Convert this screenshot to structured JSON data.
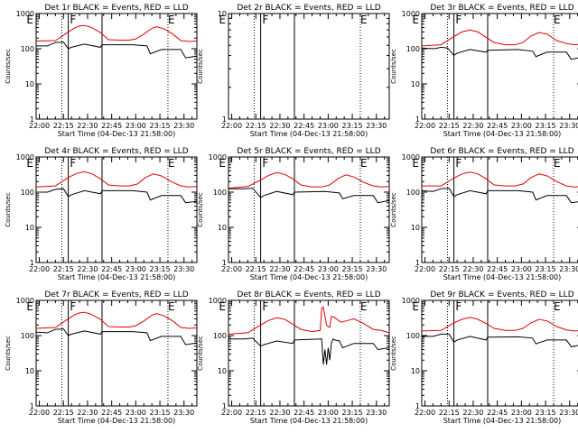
{
  "figure": {
    "xaxis_title": "Start Time (04-Dec-13 21:58:00)",
    "yaxis_title": "Counts/sec",
    "x_tick_labels": [
      "22:00",
      "22:15",
      "22:30",
      "22:45",
      "23:00",
      "23:15",
      "23:30"
    ],
    "y_tick_labels": [
      "1",
      "10",
      "100",
      "1000"
    ],
    "marker_labels": [
      {
        "text": "E",
        "x_min": -6
      },
      {
        "text": "F",
        "x_min": 21
      },
      {
        "text": "E",
        "x_min": 82
      }
    ],
    "colors": {
      "events": "#000000",
      "lld": "#e00000",
      "background": "#ffffff"
    }
  },
  "chart_data": [
    {
      "type": "line",
      "title": "Det 1r BLACK = Events, RED = LLD",
      "xlabel": "Start Time (04-Dec-13 21:58:00)",
      "ylabel": "Counts/sec",
      "xlim": [
        0,
        100
      ],
      "ylim": [
        1,
        1000
      ],
      "yscale": "log",
      "dotted_vlines": [
        16,
        82
      ],
      "solid_vlines": [
        20,
        41
      ],
      "series": [
        {
          "name": "Events",
          "color": "#000000",
          "x": [
            0,
            7,
            12,
            17,
            20,
            22,
            30,
            40,
            41,
            60,
            69,
            71,
            78,
            90,
            93,
            100
          ],
          "y": [
            120,
            120,
            150,
            155,
            100,
            110,
            135,
            110,
            130,
            130,
            120,
            72,
            95,
            95,
            55,
            62
          ]
        },
        {
          "name": "LLD",
          "color": "#e00000",
          "x": [
            0,
            12,
            20,
            24,
            27,
            30,
            34,
            40,
            45,
            52,
            58,
            62,
            67,
            72,
            75,
            80,
            85,
            90,
            95,
            100
          ],
          "y": [
            165,
            170,
            300,
            390,
            440,
            460,
            410,
            290,
            180,
            175,
            175,
            190,
            260,
            380,
            420,
            360,
            260,
            170,
            160,
            165
          ]
        }
      ]
    },
    {
      "type": "line",
      "title": "Det 2r BLACK = Events, RED = LLD",
      "xlabel": "Start Time (04-Dec-13 21:58:00)",
      "ylabel": "Counts/sec",
      "xlim": [
        0,
        100
      ],
      "ylim": [
        1,
        10
      ],
      "yscale": "log",
      "dotted_vlines": [
        16,
        82
      ],
      "solid_vlines": [
        20,
        41
      ],
      "series": []
    },
    {
      "type": "line",
      "title": "Det 3r BLACK = Events, RED = LLD",
      "xlabel": "Start Time (04-Dec-13 21:58:00)",
      "ylabel": "Counts/sec",
      "xlim": [
        0,
        100
      ],
      "ylim": [
        1,
        1000
      ],
      "yscale": "log",
      "dotted_vlines": [
        16,
        82
      ],
      "solid_vlines": [
        20,
        41
      ],
      "series": [
        {
          "name": "Events",
          "color": "#000000",
          "x": [
            0,
            8,
            12,
            16,
            20,
            22,
            30,
            40,
            41,
            60,
            69,
            71,
            78,
            90,
            93,
            100
          ],
          "y": [
            105,
            100,
            110,
            105,
            65,
            75,
            95,
            80,
            90,
            95,
            85,
            60,
            80,
            80,
            50,
            58
          ]
        },
        {
          "name": "LLD",
          "color": "#e00000",
          "x": [
            0,
            12,
            20,
            25,
            30,
            35,
            40,
            45,
            52,
            58,
            63,
            68,
            73,
            78,
            84,
            90,
            95,
            100
          ],
          "y": [
            120,
            130,
            220,
            300,
            340,
            300,
            210,
            150,
            130,
            130,
            150,
            230,
            290,
            260,
            170,
            140,
            130,
            135
          ]
        }
      ]
    },
    {
      "type": "line",
      "title": "Det 4r BLACK = Events, RED = LLD",
      "xlabel": "Start Time (04-Dec-13 21:58:00)",
      "ylabel": "Counts/sec",
      "xlim": [
        0,
        100
      ],
      "ylim": [
        1,
        1000
      ],
      "yscale": "log",
      "dotted_vlines": [
        16,
        82
      ],
      "solid_vlines": [
        20,
        41
      ],
      "series": [
        {
          "name": "Events",
          "color": "#000000",
          "x": [
            0,
            7,
            12,
            17,
            20,
            22,
            30,
            40,
            41,
            60,
            69,
            71,
            78,
            90,
            93,
            100
          ],
          "y": [
            100,
            100,
            120,
            125,
            75,
            85,
            110,
            90,
            110,
            110,
            100,
            60,
            80,
            80,
            50,
            55
          ]
        },
        {
          "name": "LLD",
          "color": "#e00000",
          "x": [
            0,
            12,
            20,
            25,
            30,
            35,
            40,
            45,
            52,
            58,
            63,
            68,
            73,
            78,
            84,
            90,
            95,
            100
          ],
          "y": [
            140,
            150,
            260,
            340,
            380,
            330,
            240,
            160,
            150,
            150,
            170,
            260,
            330,
            290,
            200,
            150,
            140,
            145
          ]
        }
      ]
    },
    {
      "type": "line",
      "title": "Det 5r BLACK = Events, RED = LLD",
      "xlabel": "Start Time (04-Dec-13 21:58:00)",
      "ylabel": "Counts/sec",
      "xlim": [
        0,
        100
      ],
      "ylim": [
        1,
        1000
      ],
      "yscale": "log",
      "dotted_vlines": [
        16,
        82
      ],
      "solid_vlines": [
        20,
        41
      ],
      "series": [
        {
          "name": "Events",
          "color": "#000000",
          "x": [
            0,
            10,
            15,
            20,
            22,
            30,
            40,
            41,
            60,
            69,
            71,
            78,
            90,
            93,
            100
          ],
          "y": [
            125,
            125,
            130,
            70,
            80,
            105,
            85,
            100,
            105,
            95,
            65,
            80,
            80,
            50,
            58
          ]
        },
        {
          "name": "LLD",
          "color": "#e00000",
          "x": [
            0,
            12,
            20,
            25,
            30,
            35,
            40,
            45,
            52,
            58,
            63,
            68,
            73,
            78,
            84,
            90,
            95,
            100
          ],
          "y": [
            130,
            145,
            220,
            300,
            360,
            320,
            240,
            160,
            140,
            140,
            160,
            240,
            310,
            270,
            190,
            150,
            140,
            145
          ]
        }
      ]
    },
    {
      "type": "line",
      "title": "Det 6r BLACK = Events, RED = LLD",
      "xlabel": "Start Time (04-Dec-13 21:58:00)",
      "ylabel": "Counts/sec",
      "xlim": [
        0,
        100
      ],
      "ylim": [
        1,
        1000
      ],
      "yscale": "log",
      "dotted_vlines": [
        16,
        82
      ],
      "solid_vlines": [
        20,
        41
      ],
      "series": [
        {
          "name": "Events",
          "color": "#000000",
          "x": [
            0,
            7,
            12,
            17,
            20,
            22,
            30,
            40,
            41,
            60,
            69,
            71,
            78,
            90,
            93,
            100
          ],
          "y": [
            110,
            105,
            125,
            130,
            75,
            85,
            110,
            90,
            110,
            110,
            100,
            60,
            80,
            80,
            50,
            55
          ]
        },
        {
          "name": "LLD",
          "color": "#e00000",
          "x": [
            0,
            12,
            20,
            25,
            30,
            35,
            40,
            45,
            52,
            58,
            63,
            68,
            73,
            78,
            84,
            90,
            95,
            100
          ],
          "y": [
            150,
            150,
            250,
            330,
            370,
            330,
            240,
            160,
            150,
            150,
            170,
            260,
            330,
            290,
            200,
            150,
            140,
            145
          ]
        }
      ]
    },
    {
      "type": "line",
      "title": "Det 7r BLACK = Events, RED = LLD",
      "xlabel": "Start Time (04-Dec-13 21:58:00)",
      "ylabel": "Counts/sec",
      "xlim": [
        0,
        100
      ],
      "ylim": [
        1,
        1000
      ],
      "yscale": "log",
      "dotted_vlines": [
        16,
        82
      ],
      "solid_vlines": [
        20,
        41
      ],
      "series": [
        {
          "name": "Events",
          "color": "#000000",
          "x": [
            0,
            7,
            12,
            17,
            20,
            22,
            30,
            40,
            41,
            60,
            69,
            71,
            78,
            90,
            93,
            100
          ],
          "y": [
            125,
            120,
            150,
            155,
            100,
            110,
            135,
            110,
            130,
            130,
            120,
            72,
            95,
            95,
            55,
            62
          ]
        },
        {
          "name": "LLD",
          "color": "#e00000",
          "x": [
            0,
            12,
            20,
            24,
            27,
            30,
            34,
            40,
            45,
            52,
            58,
            62,
            67,
            72,
            75,
            80,
            85,
            90,
            95,
            100
          ],
          "y": [
            160,
            170,
            300,
            390,
            440,
            460,
            410,
            290,
            180,
            175,
            175,
            190,
            260,
            380,
            420,
            360,
            260,
            170,
            160,
            165
          ]
        }
      ]
    },
    {
      "type": "line",
      "title": "Det 8r BLACK = Events, RED = LLD",
      "xlabel": "Start Time (04-Dec-13 21:58:00)",
      "ylabel": "Counts/sec",
      "xlim": [
        0,
        100
      ],
      "ylim": [
        1,
        1000
      ],
      "yscale": "log",
      "dotted_vlines": [
        16,
        82
      ],
      "solid_vlines": [
        20,
        41
      ],
      "series": [
        {
          "name": "Events",
          "color": "#000000",
          "x": [
            0,
            10,
            15,
            20,
            22,
            30,
            40,
            41,
            58,
            59,
            60,
            61,
            62,
            63,
            64,
            65,
            66,
            69,
            71,
            78,
            90,
            93,
            100
          ],
          "y": [
            80,
            80,
            85,
            50,
            55,
            70,
            60,
            75,
            80,
            15,
            40,
            15,
            45,
            20,
            60,
            80,
            75,
            70,
            45,
            60,
            60,
            40,
            45
          ]
        },
        {
          "name": "LLD",
          "color": "#e00000",
          "x": [
            0,
            12,
            20,
            25,
            30,
            35,
            40,
            45,
            52,
            57,
            58,
            59,
            61,
            62,
            63,
            64,
            66,
            68,
            70,
            73,
            78,
            84,
            90,
            95,
            100
          ],
          "y": [
            110,
            120,
            200,
            270,
            320,
            290,
            210,
            150,
            130,
            140,
            600,
            650,
            200,
            180,
            170,
            350,
            330,
            280,
            240,
            260,
            300,
            220,
            150,
            140,
            120
          ]
        }
      ]
    },
    {
      "type": "line",
      "title": "Det 9r BLACK = Events, RED = LLD",
      "xlabel": "Start Time (04-Dec-13 21:58:00)",
      "ylabel": "Counts/sec",
      "xlim": [
        0,
        100
      ],
      "ylim": [
        1,
        1000
      ],
      "yscale": "log",
      "dotted_vlines": [
        16,
        82
      ],
      "solid_vlines": [
        20,
        41
      ],
      "series": [
        {
          "name": "Events",
          "color": "#000000",
          "x": [
            0,
            7,
            12,
            17,
            20,
            22,
            30,
            40,
            41,
            60,
            69,
            71,
            78,
            90,
            93,
            100
          ],
          "y": [
            95,
            95,
            110,
            110,
            65,
            75,
            95,
            75,
            90,
            92,
            85,
            58,
            75,
            75,
            48,
            55
          ]
        },
        {
          "name": "LLD",
          "color": "#e00000",
          "x": [
            0,
            12,
            20,
            25,
            30,
            35,
            40,
            45,
            52,
            58,
            63,
            68,
            73,
            78,
            84,
            90,
            95,
            100
          ],
          "y": [
            135,
            140,
            230,
            290,
            330,
            290,
            220,
            160,
            140,
            140,
            160,
            230,
            290,
            260,
            180,
            145,
            135,
            140
          ]
        }
      ]
    }
  ]
}
